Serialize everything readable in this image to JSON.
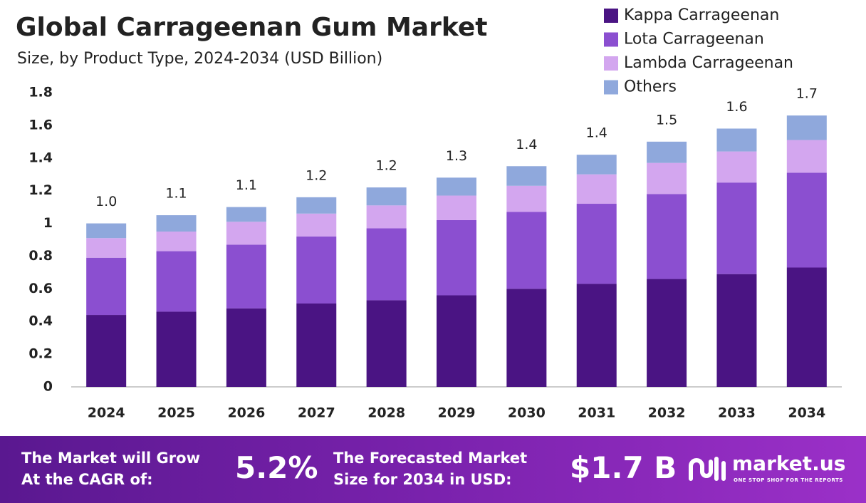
{
  "chart_data": {
    "type": "bar",
    "stacked": true,
    "title": "Global Carrageenan Gum Market",
    "subtitle": "Size, by Product Type, 2024-2034 (USD Billion)",
    "categories": [
      "2024",
      "2025",
      "2026",
      "2027",
      "2028",
      "2029",
      "2030",
      "2031",
      "2032",
      "2033",
      "2034"
    ],
    "series": [
      {
        "name": "Kappa Carrageenan",
        "color": "#4a1483",
        "values": [
          0.44,
          0.46,
          0.48,
          0.51,
          0.53,
          0.56,
          0.6,
          0.63,
          0.66,
          0.69,
          0.73
        ]
      },
      {
        "name": "Lota Carrageenan",
        "color": "#8b4fd0",
        "values": [
          0.35,
          0.37,
          0.39,
          0.41,
          0.44,
          0.46,
          0.47,
          0.49,
          0.52,
          0.56,
          0.58
        ]
      },
      {
        "name": "Lambda Carrageenan",
        "color": "#d3a6ef",
        "values": [
          0.12,
          0.12,
          0.14,
          0.14,
          0.14,
          0.15,
          0.16,
          0.18,
          0.19,
          0.19,
          0.2
        ]
      },
      {
        "name": "Others",
        "color": "#8fa8dc",
        "values": [
          0.09,
          0.1,
          0.09,
          0.1,
          0.11,
          0.11,
          0.12,
          0.12,
          0.13,
          0.14,
          0.15
        ]
      }
    ],
    "totals": [
      1.0,
      1.1,
      1.1,
      1.2,
      1.2,
      1.3,
      1.4,
      1.4,
      1.5,
      1.6,
      1.7
    ],
    "totals_labels": [
      "1.0",
      "1.1",
      "1.1",
      "1.2",
      "1.2",
      "1.3",
      "1.4",
      "1.4",
      "1.5",
      "1.6",
      "1.7"
    ],
    "ylim": [
      0,
      1.8
    ],
    "yticks": [
      0,
      0.2,
      0.4,
      0.6,
      0.8,
      1,
      1.2,
      1.4,
      1.6,
      1.8
    ],
    "grid": false,
    "legend": "top-right"
  },
  "footer": {
    "cagr_text_1": "The Market will Grow",
    "cagr_text_2": "At the CAGR of:",
    "cagr": "5.2%",
    "size_text_1": "The Forecasted Market",
    "size_text_2": "Size for 2034 in USD:",
    "size": "$1.7 B",
    "brand": "market.us",
    "tagline": "ONE STOP SHOP FOR THE REPORTS"
  }
}
